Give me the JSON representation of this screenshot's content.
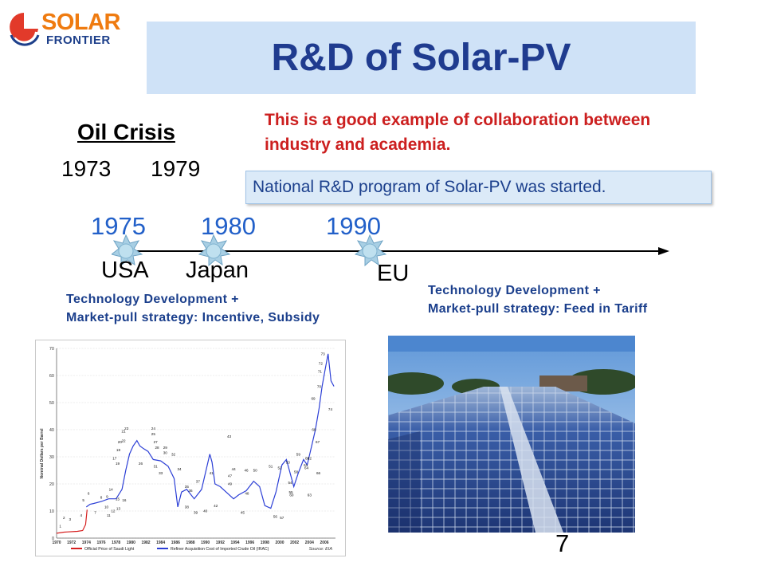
{
  "logo": {
    "line1": "SOLAR",
    "line2": "FRONTIER"
  },
  "title": "R&D of Solar-PV",
  "oil_crisis": {
    "heading": "Oil Crisis",
    "years": [
      "1973",
      "1979"
    ]
  },
  "collab_note": "This is a good example of collaboration between industry and academia.",
  "program_note": "National R&D program of Solar-PV was started.",
  "timeline": {
    "years": [
      "1975",
      "1980",
      "1990"
    ],
    "regions": [
      "USA",
      "Japan",
      "EU"
    ]
  },
  "tech_notes": {
    "left": [
      "Technology Development +",
      "Market-pull strategy: Incentive, Subsidy"
    ],
    "right": [
      "Technology Development +",
      "Market-pull strategy: Feed in Tariff"
    ]
  },
  "chart_data": {
    "type": "line",
    "ylabel": "Nominal Dollars per Barrel",
    "y_ticks": [
      "0",
      "10",
      "20",
      "30",
      "40",
      "50",
      "60",
      "70"
    ],
    "ylim": [
      0,
      70
    ],
    "x_ticks": [
      "1970",
      "1972",
      "1974",
      "1976",
      "1978",
      "1980",
      "1982",
      "1984",
      "1986",
      "1988",
      "1990",
      "1992",
      "1994",
      "1996",
      "1998",
      "2000",
      "2002",
      "2004",
      "2006"
    ],
    "xlim": [
      1970,
      2007.5
    ],
    "series": [
      {
        "name": "Official Price of Saudi Light",
        "color": "#d62020",
        "x": [
          1970,
          1971,
          1971.5,
          1972.8,
          1973.5,
          1973.9,
          1974.1
        ],
        "y": [
          1.8,
          2.2,
          2.3,
          2.5,
          2.8,
          5.0,
          10.5
        ]
      },
      {
        "name": "Refiner Acquisition Cost of Imported Crude Oil (IRAC)",
        "color": "#2c3fd6",
        "x": [
          1974,
          1974.5,
          1975,
          1976,
          1977,
          1978,
          1978.8,
          1979.3,
          1979.8,
          1980.3,
          1980.8,
          1981.2,
          1981.7,
          1982.3,
          1983,
          1984,
          1985,
          1985.8,
          1986.3,
          1986.8,
          1987.5,
          1988.5,
          1989.5,
          1990.6,
          1990.9,
          1991.3,
          1992,
          1993,
          1993.8,
          1994.5,
          1995.5,
          1996.5,
          1997.3,
          1998,
          1998.8,
          1999.5,
          2000.3,
          2000.9,
          2001.5,
          2001.9,
          2002.5,
          2003.2,
          2003.7,
          2004.3,
          2004.8,
          2005.3,
          2005.7,
          2006.1,
          2006.5,
          2006.9,
          2007.3
        ],
        "y": [
          11.5,
          12.5,
          12.8,
          13.5,
          14.5,
          14.5,
          18,
          25,
          31,
          34,
          36,
          34,
          33,
          32,
          29,
          28.5,
          26.5,
          22,
          11.5,
          17,
          18,
          14.5,
          18,
          31,
          28,
          20,
          19,
          16.5,
          14.5,
          16,
          17.5,
          21,
          19,
          12,
          11,
          17,
          27,
          29,
          23,
          19,
          24,
          29,
          27,
          34,
          40,
          48,
          56,
          62,
          68,
          58,
          56
        ]
      }
    ],
    "source": "Source: EIA",
    "annotations": [
      {
        "label": "1",
        "x": 1970.5,
        "y": 4
      },
      {
        "label": "2",
        "x": 1971,
        "y": 7
      },
      {
        "label": "3",
        "x": 1971.8,
        "y": 6.5
      },
      {
        "label": "4",
        "x": 1973.3,
        "y": 8
      },
      {
        "label": "5",
        "x": 1973.6,
        "y": 13.5
      },
      {
        "label": "6",
        "x": 1974.3,
        "y": 16
      },
      {
        "label": "7",
        "x": 1975.2,
        "y": 9
      },
      {
        "label": "8",
        "x": 1976,
        "y": 14.5
      },
      {
        "label": "9",
        "x": 1976.8,
        "y": 14.8
      },
      {
        "label": "10",
        "x": 1976.7,
        "y": 11
      },
      {
        "label": "11",
        "x": 1977,
        "y": 8
      },
      {
        "label": "12",
        "x": 1977.6,
        "y": 9.5
      },
      {
        "label": "13",
        "x": 1978.3,
        "y": 10.5
      },
      {
        "label": "14",
        "x": 1977.3,
        "y": 17.5
      },
      {
        "label": "15",
        "x": 1978.2,
        "y": 14
      },
      {
        "label": "16",
        "x": 1979.1,
        "y": 13.5
      },
      {
        "label": "17",
        "x": 1977.8,
        "y": 29
      },
      {
        "label": "18",
        "x": 1978.3,
        "y": 32
      },
      {
        "label": "19",
        "x": 1978.2,
        "y": 27
      },
      {
        "label": "20",
        "x": 1978.5,
        "y": 35
      },
      {
        "label": "21",
        "x": 1979,
        "y": 39
      },
      {
        "label": "22",
        "x": 1979,
        "y": 35.5
      },
      {
        "label": "23",
        "x": 1979.4,
        "y": 40
      },
      {
        "label": "24",
        "x": 1983,
        "y": 40
      },
      {
        "label": "25",
        "x": 1983,
        "y": 38
      },
      {
        "label": "26",
        "x": 1981.3,
        "y": 27
      },
      {
        "label": "27",
        "x": 1983.3,
        "y": 35
      },
      {
        "label": "28",
        "x": 1983.5,
        "y": 33
      },
      {
        "label": "29",
        "x": 1984.6,
        "y": 33
      },
      {
        "label": "30",
        "x": 1984.6,
        "y": 31
      },
      {
        "label": "31",
        "x": 1983.3,
        "y": 26
      },
      {
        "label": "32",
        "x": 1985.7,
        "y": 30.5
      },
      {
        "label": "33",
        "x": 1984,
        "y": 23.5
      },
      {
        "label": "34",
        "x": 1986.5,
        "y": 25
      },
      {
        "label": "35",
        "x": 1987.5,
        "y": 18.5
      },
      {
        "label": "36",
        "x": 1988,
        "y": 17
      },
      {
        "label": "37",
        "x": 1989,
        "y": 20.5
      },
      {
        "label": "38",
        "x": 1987.5,
        "y": 11
      },
      {
        "label": "39",
        "x": 1988.7,
        "y": 9
      },
      {
        "label": "40",
        "x": 1990,
        "y": 9.5
      },
      {
        "label": "41",
        "x": 1990.8,
        "y": 23.5
      },
      {
        "label": "42",
        "x": 1991.4,
        "y": 11.5
      },
      {
        "label": "43",
        "x": 1993.2,
        "y": 37
      },
      {
        "label": "44",
        "x": 1993.8,
        "y": 25
      },
      {
        "label": "45",
        "x": 1995,
        "y": 9
      },
      {
        "label": "46",
        "x": 1995.5,
        "y": 24.5
      },
      {
        "label": "47",
        "x": 1993.3,
        "y": 22.5
      },
      {
        "label": "48",
        "x": 1995.6,
        "y": 16
      },
      {
        "label": "49",
        "x": 1993.3,
        "y": 19.5
      },
      {
        "label": "50",
        "x": 1996.7,
        "y": 24.5
      },
      {
        "label": "51",
        "x": 1998.8,
        "y": 26
      },
      {
        "label": "52",
        "x": 2000,
        "y": 25.5
      },
      {
        "label": "53",
        "x": 2001.1,
        "y": 27.5
      },
      {
        "label": "54",
        "x": 2001.4,
        "y": 20
      },
      {
        "label": "55",
        "x": 2001.5,
        "y": 16.5
      },
      {
        "label": "56",
        "x": 1999.4,
        "y": 7.5
      },
      {
        "label": "57",
        "x": 2000.3,
        "y": 7
      },
      {
        "label": "58",
        "x": 2002.2,
        "y": 24
      },
      {
        "label": "59",
        "x": 2002.5,
        "y": 30.5
      },
      {
        "label": "60",
        "x": 2001.6,
        "y": 15.5
      },
      {
        "label": "61",
        "x": 2003.5,
        "y": 26.5
      },
      {
        "label": "62",
        "x": 2004,
        "y": 29
      },
      {
        "label": "63",
        "x": 2004,
        "y": 15.5
      },
      {
        "label": "64",
        "x": 2003.6,
        "y": 25.5
      },
      {
        "label": "65",
        "x": 2003.7,
        "y": 29
      },
      {
        "label": "66",
        "x": 2005.2,
        "y": 23.5
      },
      {
        "label": "67",
        "x": 2005.1,
        "y": 35
      },
      {
        "label": "68",
        "x": 2004.6,
        "y": 39.5
      },
      {
        "label": "69",
        "x": 2004.5,
        "y": 51
      },
      {
        "label": "70",
        "x": 2005.3,
        "y": 55.5
      },
      {
        "label": "71",
        "x": 2005.4,
        "y": 61
      },
      {
        "label": "72",
        "x": 2005.5,
        "y": 64
      },
      {
        "label": "73",
        "x": 2005.8,
        "y": 67.5
      },
      {
        "label": "74",
        "x": 2006.8,
        "y": 47
      }
    ]
  },
  "chart_legend": [
    "Official Price of Saudi Light",
    "Refiner Acquisition Cost of Imported Crude Oil (IRAC)"
  ],
  "slide_number": "7",
  "colors": {
    "title_bg": "#cfe2f7",
    "title_text": "#1f3b8f",
    "accent_red": "#cc1f1f",
    "year_blue": "#2260c9",
    "star": "#9fc8e0"
  }
}
